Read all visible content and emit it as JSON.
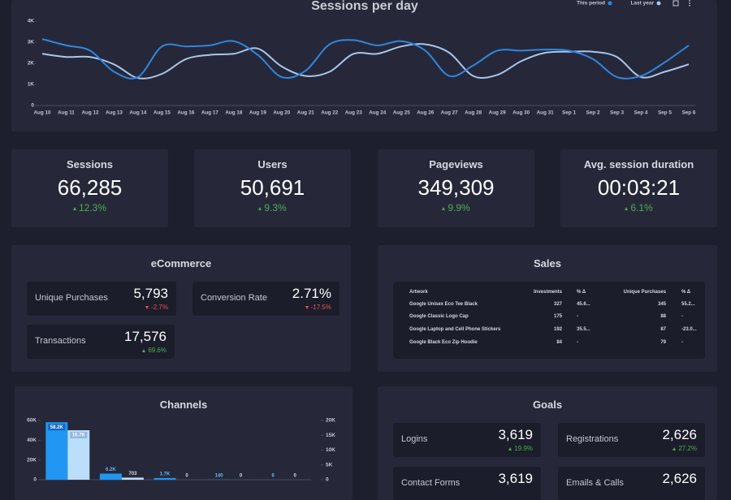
{
  "chart_data": [
    {
      "type": "line",
      "title": "Sessions per day",
      "x": [
        "Aug 10",
        "Aug 11",
        "Aug 12",
        "Aug 13",
        "Aug 14",
        "Aug 15",
        "Aug 16",
        "Aug 17",
        "Aug 18",
        "Aug 19",
        "Aug 20",
        "Aug 21",
        "Aug 22",
        "Aug 23",
        "Aug 24",
        "Aug 25",
        "Aug 26",
        "Aug 27",
        "Aug 28",
        "Aug 29",
        "Aug 30",
        "Aug 31",
        "Sep 1",
        "Sep 2",
        "Sep 3",
        "Sep 4",
        "Sep 5",
        "Sep 6"
      ],
      "series": [
        {
          "name": "This period",
          "color": "#2f86e0",
          "values": [
            3150,
            2850,
            2600,
            1600,
            1350,
            2800,
            2800,
            2850,
            3050,
            2400,
            1350,
            1650,
            2900,
            3100,
            2850,
            3050,
            2600,
            1400,
            1900,
            2600,
            2600,
            2650,
            2600,
            2200,
            1350,
            1400,
            2050,
            2850
          ]
        },
        {
          "name": "Last year",
          "color": "#a8c6ec",
          "values": [
            2450,
            2300,
            2300,
            1950,
            1300,
            1500,
            2200,
            2400,
            2450,
            2700,
            1850,
            1400,
            1600,
            2450,
            2450,
            2800,
            2900,
            2500,
            1400,
            1450,
            2100,
            2500,
            2550,
            2550,
            2300,
            1350,
            1600,
            1950
          ]
        }
      ],
      "ylim": [
        0,
        4000
      ],
      "yticks": [
        0,
        {
          "value": 1000,
          "label": "1K"
        },
        {
          "value": 2000,
          "label": "2K"
        },
        {
          "value": 3000,
          "label": "3K"
        },
        {
          "value": 4000,
          "label": "4K"
        }
      ],
      "legend": "top-right"
    },
    {
      "type": "bar",
      "title": "Channels",
      "categories": [
        null,
        null,
        null,
        null,
        null
      ],
      "series": [
        {
          "color": "#2196f3",
          "values": [
            58200,
            6200,
            1700,
            140,
            6
          ],
          "value_labels": [
            "58.2K",
            "6.2K",
            "1.7K",
            "140",
            "6"
          ]
        },
        {
          "color": "#bbdefb",
          "axis": "y2",
          "values": [
            16700,
            703,
            0,
            0,
            0
          ],
          "value_labels": [
            "16.7K",
            "703",
            "0",
            "0",
            "0"
          ]
        }
      ],
      "ylim": [
        0,
        60000
      ],
      "yticks": [
        0,
        {
          "value": 20000,
          "label": "20K"
        },
        {
          "value": 40000,
          "label": "40K"
        },
        {
          "value": 60000,
          "label": "60K"
        }
      ],
      "y2lim": [
        0,
        20000
      ],
      "y2ticks": [
        0,
        {
          "value": 5000,
          "label": "5K"
        },
        {
          "value": 10000,
          "label": "10K"
        },
        {
          "value": 15000,
          "label": "15K"
        },
        {
          "value": 20000,
          "label": "20K"
        }
      ]
    }
  ],
  "kpis": [
    {
      "label": "Sessions",
      "value": "66,285",
      "delta": "12.3%"
    },
    {
      "label": "Users",
      "value": "50,691",
      "delta": "9.3%"
    },
    {
      "label": "Pageviews",
      "value": "349,309",
      "delta": "9.9%"
    },
    {
      "label": "Avg. session duration",
      "value": "00:03:21",
      "delta": "6.1%"
    }
  ],
  "ecommerce": {
    "title": "eCommerce",
    "tiles": [
      {
        "label": "Unique Purchases",
        "value": "5,793",
        "delta": "-2.7%"
      },
      {
        "label": "Conversion Rate",
        "value": "2.71%",
        "delta": "-17.5%"
      },
      {
        "label": "Transactions",
        "value": "17,576",
        "delta": "69.6%"
      }
    ]
  },
  "sales": {
    "title": "Sales",
    "table": {
      "header": [
        "Artwork",
        "Investments",
        "% Δ",
        "Unique Purchases",
        "% Δ"
      ],
      "rows": [
        [
          "Google Unisex Eco Tee Black",
          "327",
          "45.6...",
          "345",
          "55.2..."
        ],
        [
          "Google Classic Logo Cap",
          "175",
          "-",
          "88",
          "-"
        ],
        [
          "Google Laptop and Cell Phone Stickers",
          "192",
          "35.5...",
          "87",
          "-23.0..."
        ],
        [
          "Google Black Eco Zip Hoodie",
          "84",
          "-",
          "79",
          "-"
        ]
      ]
    }
  },
  "goals": {
    "title": "Goals",
    "tiles": [
      {
        "label": "Logins",
        "value": "3,619",
        "delta": "19.9%"
      },
      {
        "label": "Registrations",
        "value": "2,626",
        "delta": "27.2%"
      },
      {
        "label": "Contact Forms",
        "value": "3,619"
      },
      {
        "label": "Emails & Calls",
        "value": "2,626"
      }
    ]
  }
}
